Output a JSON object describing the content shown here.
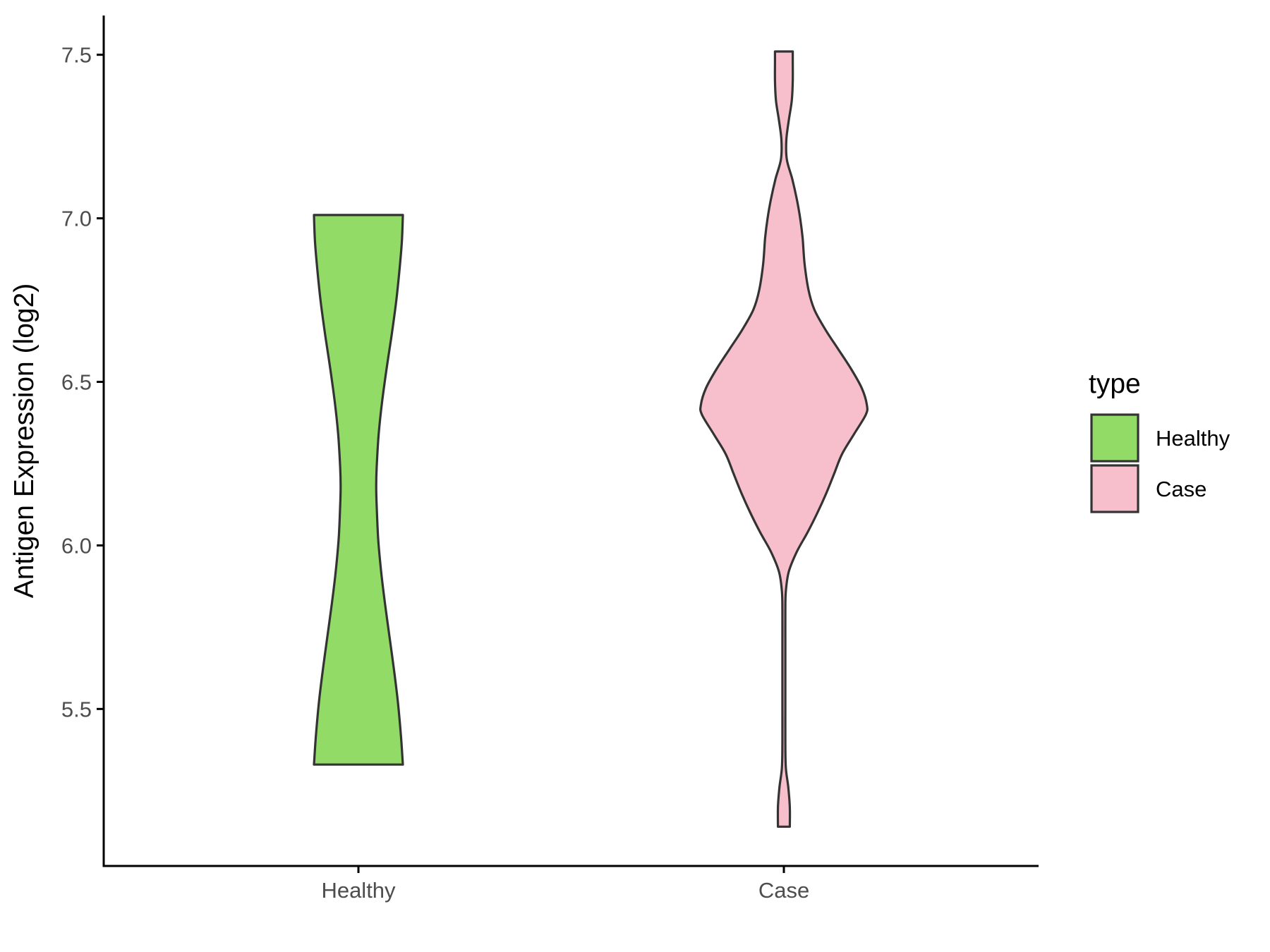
{
  "chart_data": {
    "type": "violin",
    "title": "",
    "xlabel": "",
    "ylabel": "Antigen Expression (log2)",
    "ylim": [
      5.02,
      7.62
    ],
    "yticks": [
      5.5,
      6.0,
      6.5,
      7.0,
      7.5
    ],
    "ytick_labels": [
      "5.5",
      "6.0",
      "6.5",
      "7.0",
      "7.5"
    ],
    "categories": [
      "Healthy",
      "Case"
    ],
    "grid": false,
    "legend": {
      "title": "type",
      "position": "right",
      "entries": [
        {
          "label": "Healthy",
          "color": "#92DB67"
        },
        {
          "label": "Case",
          "color": "#F7BFCB"
        }
      ]
    },
    "series": [
      {
        "name": "Healthy",
        "color": "#92DB67",
        "min": 5.33,
        "max": 7.01,
        "density_profile": [
          [
            5.33,
            0.9
          ],
          [
            5.42,
            0.86
          ],
          [
            5.52,
            0.8
          ],
          [
            5.62,
            0.72
          ],
          [
            5.72,
            0.63
          ],
          [
            5.82,
            0.54
          ],
          [
            5.92,
            0.46
          ],
          [
            6.02,
            0.4
          ],
          [
            6.12,
            0.37
          ],
          [
            6.18,
            0.36
          ],
          [
            6.24,
            0.37
          ],
          [
            6.34,
            0.41
          ],
          [
            6.44,
            0.48
          ],
          [
            6.54,
            0.57
          ],
          [
            6.64,
            0.67
          ],
          [
            6.74,
            0.76
          ],
          [
            6.84,
            0.83
          ],
          [
            6.93,
            0.88
          ],
          [
            7.01,
            0.9
          ]
        ]
      },
      {
        "name": "Case",
        "color": "#F7BFCB",
        "min": 5.14,
        "max": 7.51,
        "density_profile": [
          [
            5.14,
            0.12
          ],
          [
            5.2,
            0.12
          ],
          [
            5.26,
            0.09
          ],
          [
            5.32,
            0.04
          ],
          [
            5.4,
            0.03
          ],
          [
            5.5,
            0.03
          ],
          [
            5.6,
            0.03
          ],
          [
            5.7,
            0.03
          ],
          [
            5.8,
            0.03
          ],
          [
            5.86,
            0.04
          ],
          [
            5.92,
            0.1
          ],
          [
            5.98,
            0.26
          ],
          [
            6.04,
            0.48
          ],
          [
            6.1,
            0.68
          ],
          [
            6.16,
            0.86
          ],
          [
            6.22,
            1.02
          ],
          [
            6.28,
            1.18
          ],
          [
            6.34,
            1.42
          ],
          [
            6.4,
            1.66
          ],
          [
            6.43,
            1.68
          ],
          [
            6.48,
            1.58
          ],
          [
            6.54,
            1.36
          ],
          [
            6.6,
            1.1
          ],
          [
            6.66,
            0.84
          ],
          [
            6.72,
            0.62
          ],
          [
            6.78,
            0.5
          ],
          [
            6.86,
            0.42
          ],
          [
            6.94,
            0.38
          ],
          [
            7.0,
            0.33
          ],
          [
            7.06,
            0.26
          ],
          [
            7.12,
            0.17
          ],
          [
            7.18,
            0.06
          ],
          [
            7.24,
            0.05
          ],
          [
            7.3,
            0.1
          ],
          [
            7.36,
            0.16
          ],
          [
            7.42,
            0.18
          ],
          [
            7.48,
            0.18
          ],
          [
            7.51,
            0.18
          ]
        ]
      }
    ]
  }
}
